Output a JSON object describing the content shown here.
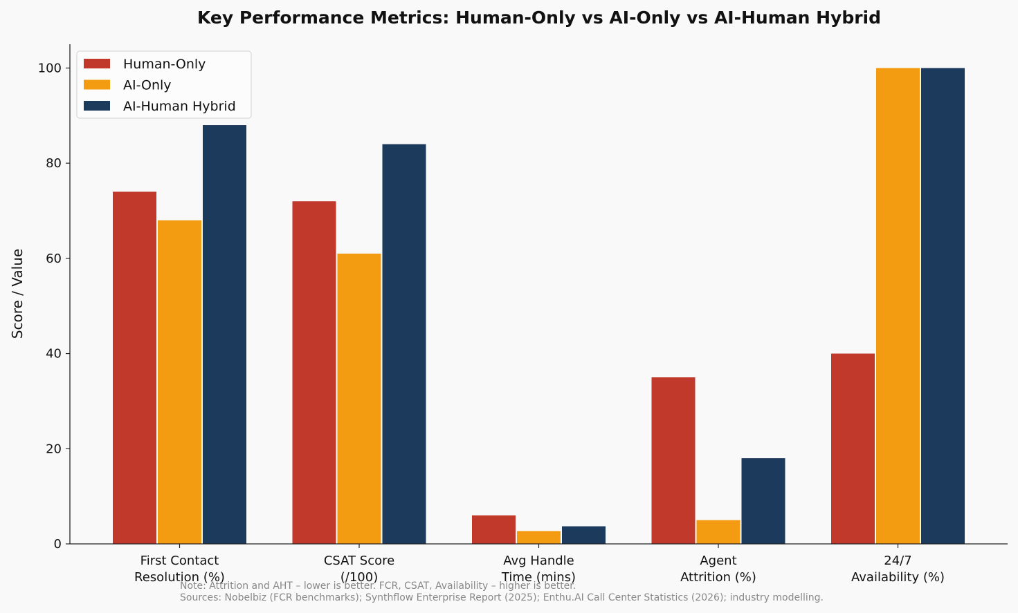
{
  "chart_data": {
    "type": "bar",
    "title": "Key Performance Metrics: Human-Only vs AI-Only vs AI-Human Hybrid",
    "xlabel": "",
    "ylabel": "Score / Value",
    "ylim": [
      0,
      105
    ],
    "yticks": [
      0,
      20,
      40,
      60,
      80,
      100
    ],
    "categories": [
      [
        "First Contact",
        "Resolution (%)"
      ],
      [
        "CSAT Score",
        "(/100)"
      ],
      [
        "Avg Handle",
        "Time (mins)"
      ],
      [
        "Agent",
        "Attrition (%)"
      ],
      [
        "24/7",
        "Availability (%)"
      ]
    ],
    "series": [
      {
        "name": "Human-Only",
        "color": "#c0392b",
        "values": [
          74,
          72,
          6,
          35,
          40
        ]
      },
      {
        "name": "AI-Only",
        "color": "#f39c12",
        "values": [
          68,
          61,
          2.7,
          5,
          100
        ]
      },
      {
        "name": "AI-Human Hybrid",
        "color": "#1b3a5c",
        "values": [
          88,
          84,
          3.7,
          18,
          100
        ]
      }
    ],
    "legend_position": "top-left",
    "grid": false
  },
  "notes": [
    "Note: Attrition and AHT – lower is better. FCR, CSAT, Availability – higher is better.",
    "Sources: Nobelbiz (FCR benchmarks); Synthflow Enterprise Report (2025); Enthu.AI Call Center Statistics (2026); industry modelling."
  ]
}
